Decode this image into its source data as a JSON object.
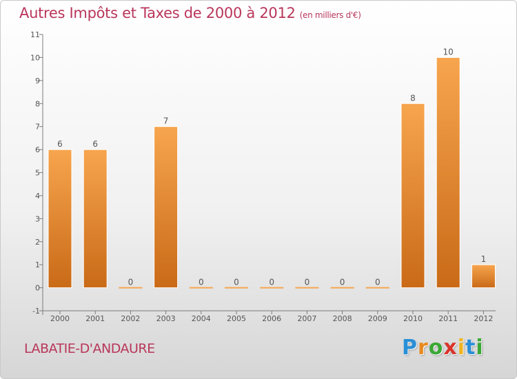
{
  "header": {
    "title": "Autres Impôts et Taxes de 2000 à 2012",
    "unit": "(en milliers d'€)"
  },
  "footer": {
    "place": "LABATIE-D'ANDAURE",
    "logo_letters": [
      "P",
      "r",
      "o",
      "x",
      "i",
      "t",
      "i"
    ]
  },
  "colors": {
    "title": "#b9365a",
    "bar_light": "#f7a54e",
    "bar_dark": "#c96a17",
    "logo": [
      "#2a8fd6",
      "#e8891f",
      "#3aa836",
      "#d8332a",
      "#f1b51c",
      "#2a8fd6",
      "#3aa836"
    ]
  },
  "chart_data": {
    "type": "bar",
    "categories": [
      "2000",
      "2001",
      "2002",
      "2003",
      "2004",
      "2005",
      "2006",
      "2007",
      "2008",
      "2009",
      "2010",
      "2011",
      "2012"
    ],
    "values": [
      6,
      6,
      0,
      7,
      0,
      0,
      0,
      0,
      0,
      0,
      8,
      10,
      1
    ],
    "data_labels": [
      "6",
      "6",
      "0",
      "7",
      "0",
      "0",
      "0",
      "0",
      "0",
      "0",
      "8",
      "10",
      "1"
    ],
    "y_ticks": [
      -1,
      0,
      1,
      2,
      3,
      4,
      5,
      6,
      7,
      8,
      9,
      10,
      11
    ],
    "ylim": [
      -1,
      11
    ],
    "grid": false,
    "legend": "none"
  }
}
